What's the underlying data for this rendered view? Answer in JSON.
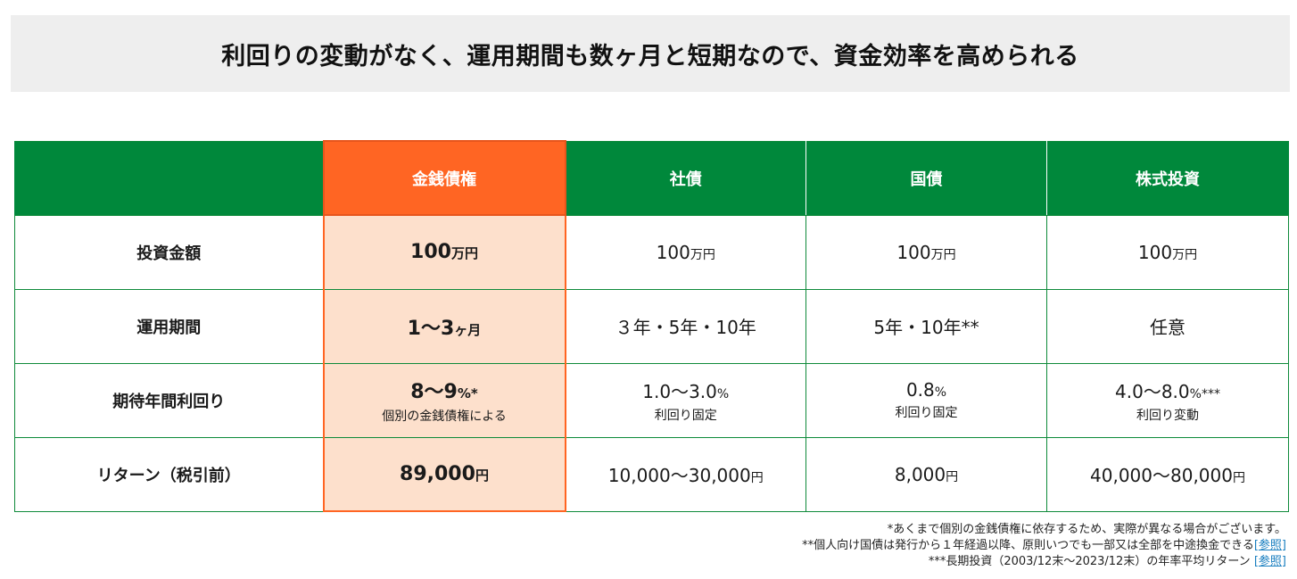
{
  "banner": {
    "title": "利回りの変動がなく、運用期間も数ヶ月と短期なので、資金効率を高められる"
  },
  "table": {
    "headers": [
      "",
      "金銭債権",
      "社債",
      "国債",
      "株式投資"
    ],
    "rows": [
      {
        "label": "投資金額",
        "cells": [
          {
            "main": "100",
            "unit": "万円",
            "sub": ""
          },
          {
            "main": "100",
            "unit": "万円",
            "sub": ""
          },
          {
            "main": "100",
            "unit": "万円",
            "sub": ""
          },
          {
            "main": "100",
            "unit": "万円",
            "sub": ""
          }
        ]
      },
      {
        "label": "運用期間",
        "cells": [
          {
            "main": "1〜3",
            "unit": "ヶ月",
            "sub": ""
          },
          {
            "main": "３年・5年・10年",
            "unit": "",
            "sub": ""
          },
          {
            "main": "5年・10年**",
            "unit": "",
            "sub": ""
          },
          {
            "main": "任意",
            "unit": "",
            "sub": ""
          }
        ]
      },
      {
        "label": "期待年間利回り",
        "cells": [
          {
            "main": "8〜9",
            "unit": "%*",
            "sub": "個別の金銭債権による"
          },
          {
            "main": "1.0〜3.0",
            "unit": "%",
            "sub": "利回り固定"
          },
          {
            "main": "0.8",
            "unit": "%",
            "sub": "利回り固定"
          },
          {
            "main": "4.0〜8.0",
            "unit": "%***",
            "sub": "利回り変動"
          }
        ]
      },
      {
        "label": "リターン（税引前）",
        "cells": [
          {
            "main": "89,000",
            "unit": "円",
            "sub": ""
          },
          {
            "main": "10,000〜30,000",
            "unit": "円",
            "sub": ""
          },
          {
            "main": "8,000",
            "unit": "円",
            "sub": ""
          },
          {
            "main": "40,000〜80,000",
            "unit": "円",
            "sub": ""
          }
        ]
      }
    ]
  },
  "notes": {
    "note1": "*あくまで個別の金銭債権に依存するため、実際が異なる場合がございます。",
    "note2": "**個人向け国債は発行から１年経過以降、原則いつでも一部又は全部を中途換金できる",
    "note3": "***長期投資（2003/12末〜2023/12末）の年率平均リターン",
    "link_open": "[",
    "link_text": "参照",
    "link_close": "]"
  },
  "colors": {
    "header_green": "#00883b",
    "highlight_orange": "#ff6523",
    "highlight_fill": "#fde0cc",
    "banner_bg": "#eeeeee",
    "link": "#1a7fc0"
  }
}
